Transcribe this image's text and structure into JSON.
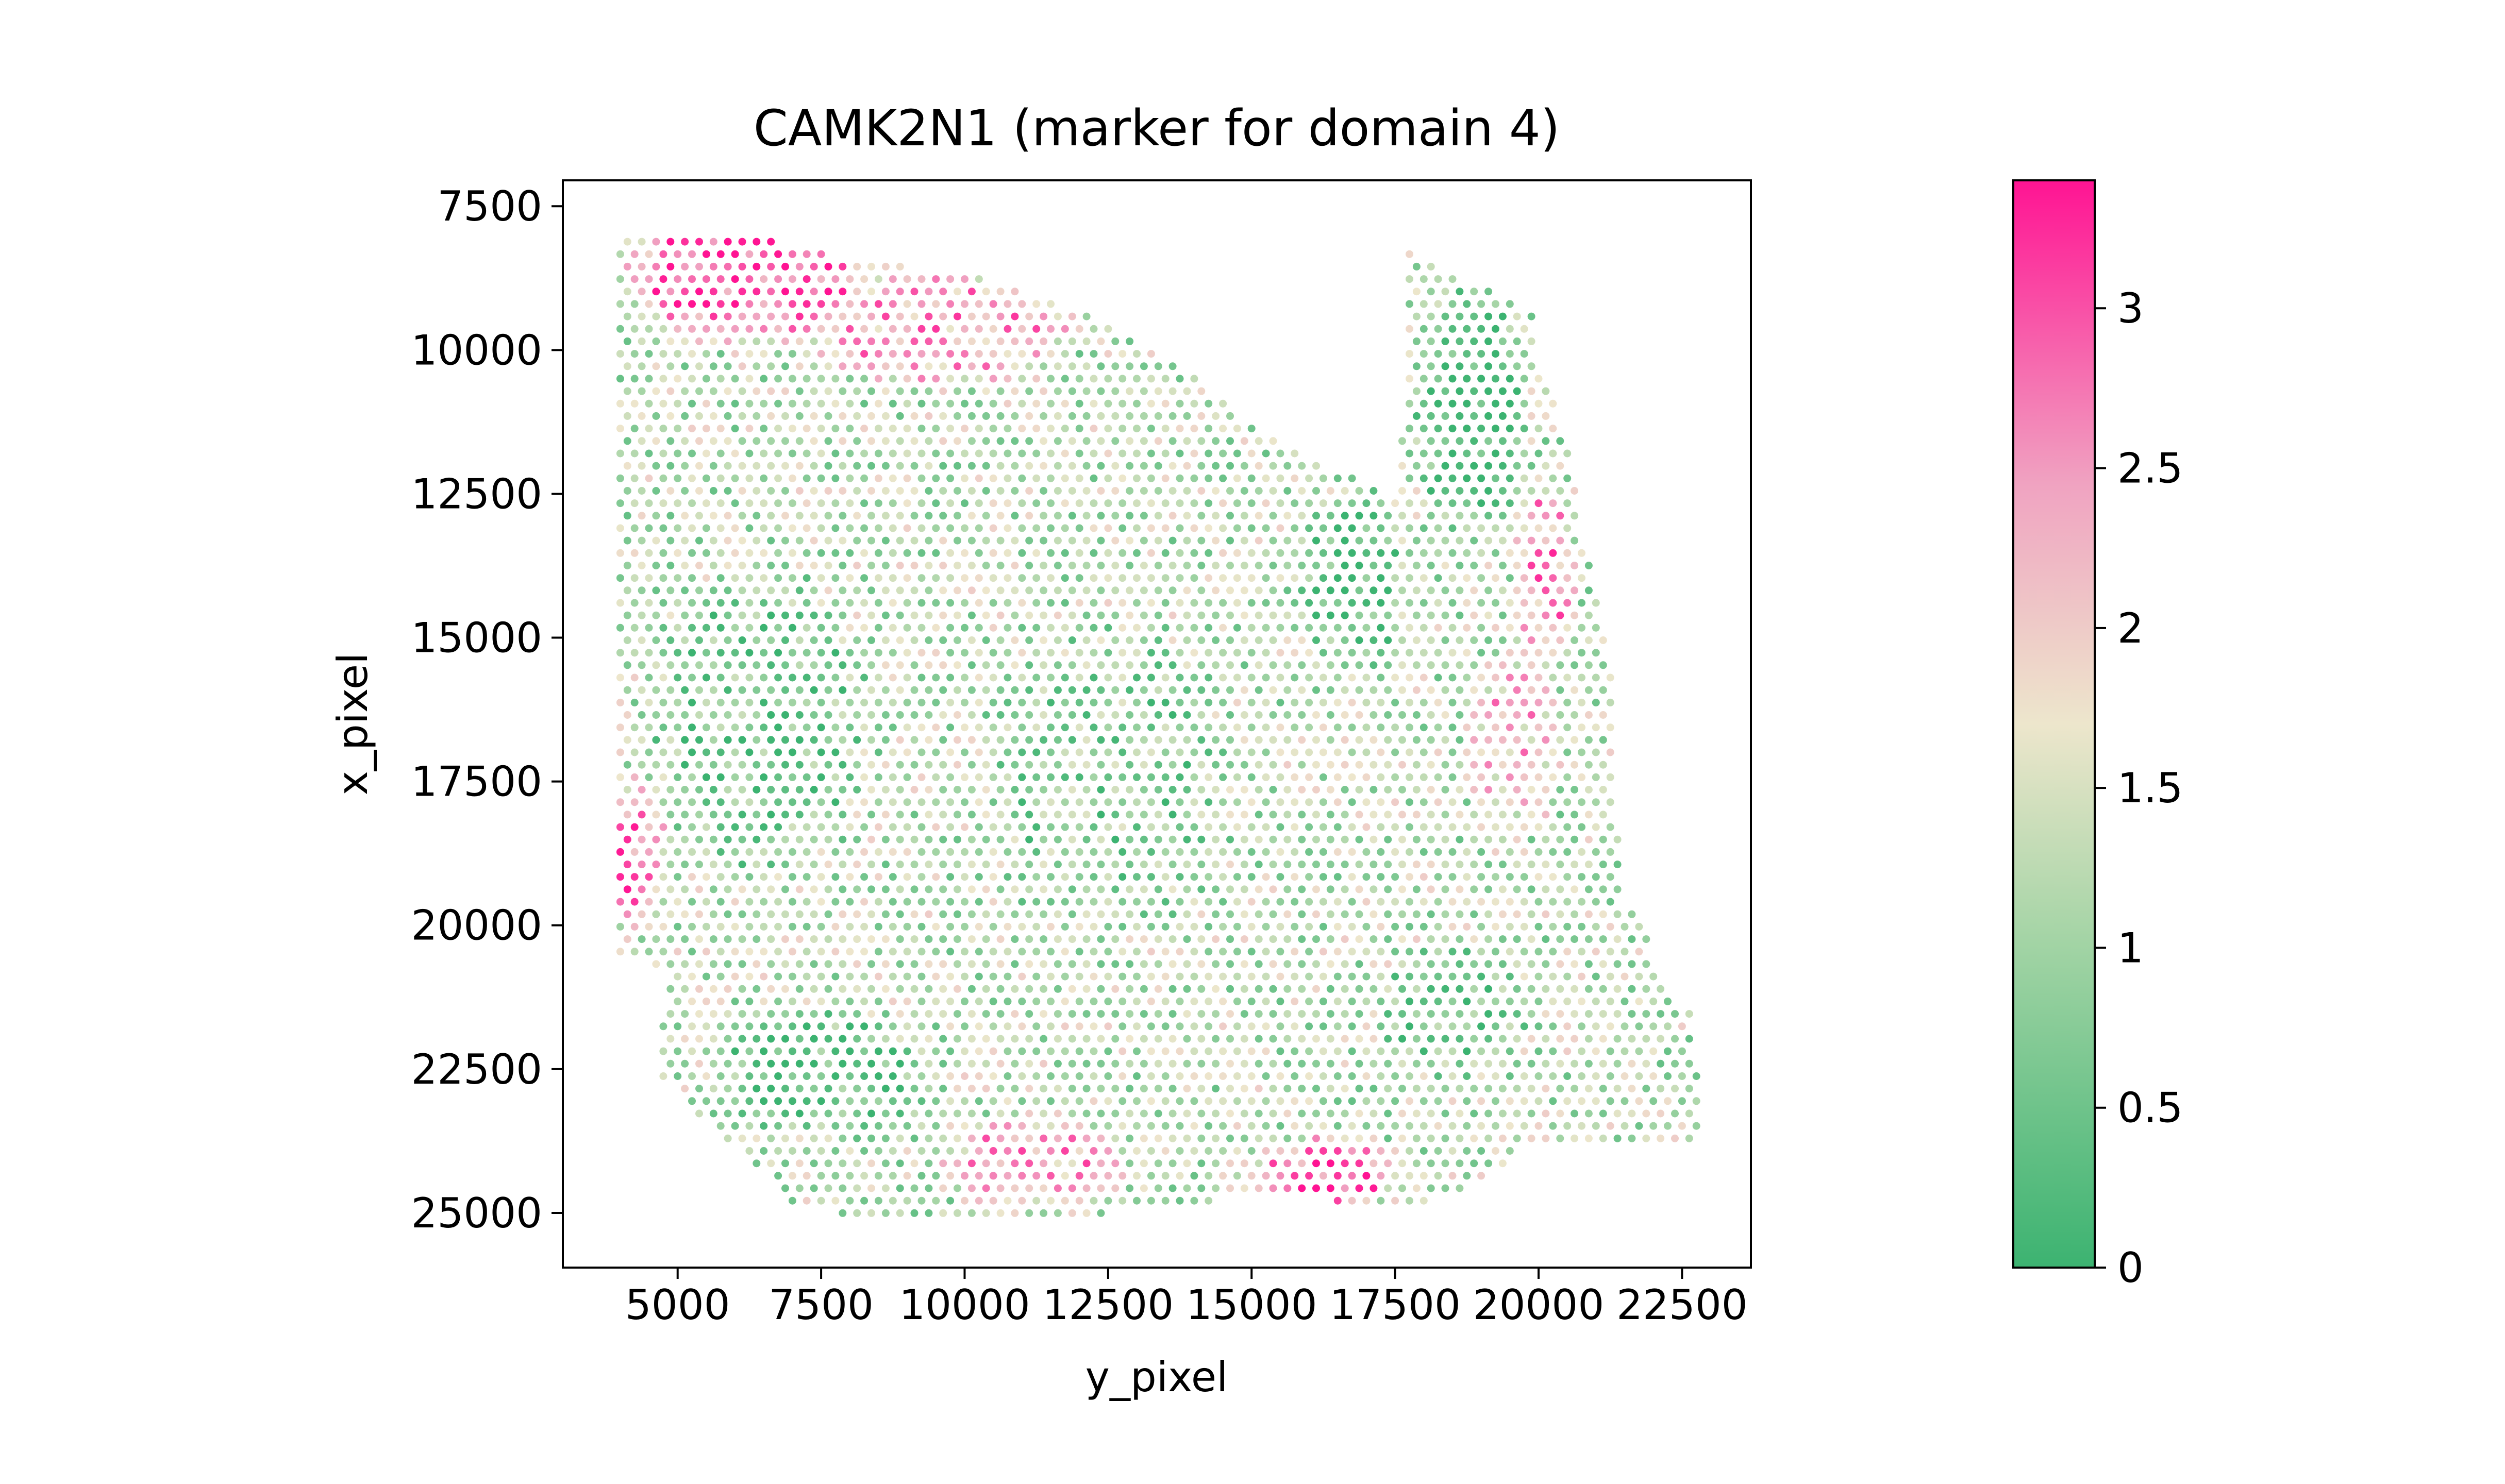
{
  "chart_data": {
    "type": "scatter",
    "title": "CAMK2N1 (marker for domain 4)",
    "xlabel": "y_pixel",
    "ylabel": "x_pixel",
    "xlim": [
      3000,
      23700
    ],
    "ylim": [
      25950,
      7050
    ],
    "y_inverted": true,
    "grid": false,
    "legend": "none",
    "x_ticks": [
      5000,
      7500,
      10000,
      12500,
      15000,
      17500,
      20000,
      22500
    ],
    "x_tick_labels": [
      "5000",
      "7500",
      "10000",
      "12500",
      "15000",
      "17500",
      "20000",
      "22500"
    ],
    "y_ticks": [
      7500,
      10000,
      12500,
      15000,
      17500,
      20000,
      22500,
      25000
    ],
    "y_tick_labels": [
      "7500",
      "10000",
      "12500",
      "15000",
      "17500",
      "20000",
      "22500",
      "25000"
    ],
    "colorbar": {
      "min": 0,
      "max": 3.4,
      "ticks": [
        0,
        0.5,
        1,
        1.5,
        2,
        2.5,
        3
      ],
      "tick_labels": [
        "0",
        "0.5",
        "1",
        "1.5",
        "2",
        "2.5",
        "3"
      ],
      "colors": [
        "#3cb371",
        "#a3d4a5",
        "#ede6cc",
        "#f0a3c1",
        "#ff1493"
      ]
    },
    "spot_spacing": 250,
    "tissue_outline": [
      [
        4000,
        8100
      ],
      [
        5900,
        7900
      ],
      [
        8000,
        8400
      ],
      [
        10500,
        8800
      ],
      [
        12500,
        9500
      ],
      [
        14000,
        10400
      ],
      [
        15000,
        11300
      ],
      [
        16500,
        12100
      ],
      [
        17400,
        12500
      ],
      [
        17600,
        12600
      ],
      [
        17700,
        8300
      ],
      [
        19900,
        9300
      ],
      [
        20000,
        10300
      ],
      [
        20500,
        11500
      ],
      [
        20700,
        13000
      ],
      [
        21300,
        15500
      ],
      [
        21400,
        19500
      ],
      [
        21800,
        20000
      ],
      [
        22300,
        21400
      ],
      [
        22700,
        21300
      ],
      [
        22800,
        23700
      ],
      [
        21700,
        23900
      ],
      [
        20000,
        23700
      ],
      [
        18800,
        24600
      ],
      [
        17700,
        24900
      ],
      [
        16500,
        24800
      ],
      [
        15000,
        24700
      ],
      [
        12500,
        25000
      ],
      [
        10000,
        25100
      ],
      [
        8500,
        25150
      ],
      [
        7000,
        24800
      ],
      [
        6000,
        23900
      ],
      [
        5200,
        23100
      ],
      [
        4700,
        22600
      ],
      [
        4600,
        21700
      ],
      [
        4900,
        21000
      ],
      [
        4500,
        20700
      ],
      [
        4000,
        20500
      ]
    ],
    "expression_regions": [
      {
        "center": [
          6200,
          8700
        ],
        "radius": [
          2400,
          1300
        ],
        "value": 3.0
      },
      {
        "center": [
          9600,
          9600
        ],
        "radius": [
          2600,
          1200
        ],
        "value": 2.4
      },
      {
        "center": [
          4200,
          18800
        ],
        "radius": [
          700,
          1500
        ],
        "value": 2.6
      },
      {
        "center": [
          16300,
          24300
        ],
        "radius": [
          1500,
          700
        ],
        "value": 2.8
      },
      {
        "center": [
          11200,
          24100
        ],
        "radius": [
          1800,
          900
        ],
        "value": 2.4
      },
      {
        "center": [
          20100,
          13800
        ],
        "radius": [
          600,
          1800
        ],
        "value": 2.5
      },
      {
        "center": [
          19600,
          16800
        ],
        "radius": [
          900,
          1800
        ],
        "value": 2.1
      },
      {
        "center": [
          18800,
          11000
        ],
        "radius": [
          1100,
          2600
        ],
        "value": 0.1
      },
      {
        "center": [
          16800,
          14000
        ],
        "radius": [
          1000,
          1800
        ],
        "value": 0.3
      },
      {
        "center": [
          7500,
          22600
        ],
        "radius": [
          2000,
          1200
        ],
        "value": 0.4
      },
      {
        "center": [
          6400,
          16500
        ],
        "radius": [
          2200,
          3000
        ],
        "value": 0.6
      },
      {
        "center": [
          12500,
          17500
        ],
        "radius": [
          2500,
          3000
        ],
        "value": 0.8
      },
      {
        "center": [
          18500,
          21500
        ],
        "radius": [
          1500,
          1300
        ],
        "value": 0.6
      }
    ],
    "baseline_value": 1.2
  }
}
